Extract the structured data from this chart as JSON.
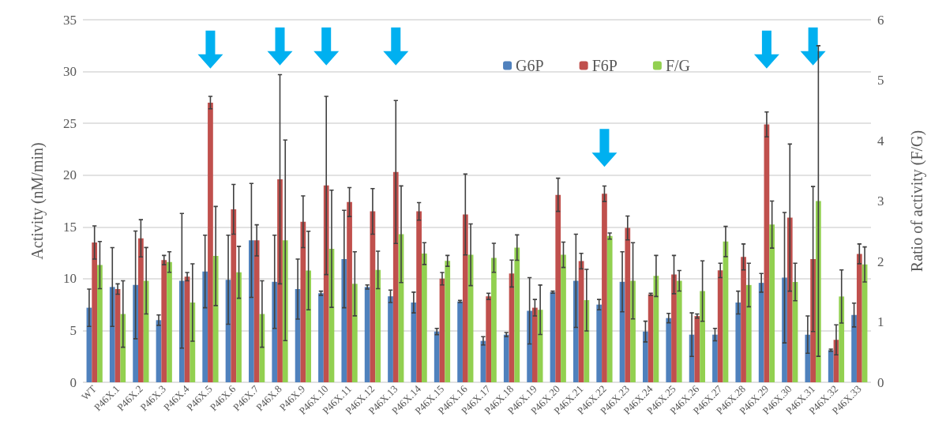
{
  "chart_data": {
    "type": "bar",
    "ylabel": "Activity (nM/min)",
    "y2label": "Ratio of activity (F/G)",
    "categories": [
      "WT",
      "P46X.1",
      "P46X.2",
      "P46X.3",
      "P46X.4",
      "P46X.5",
      "P46X.6",
      "P46X.7",
      "P46X.8",
      "P46X.9",
      "P46X.10",
      "P46X.11",
      "P46X.12",
      "P46X.13",
      "P46X.14",
      "P46X.15",
      "P46X.16",
      "P46X.17",
      "P46X.18",
      "P46X.19",
      "P46X.20",
      "P46X.21",
      "P46X.22",
      "P46X.23",
      "P46X.24",
      "P46X.25",
      "P46X.26",
      "P46X.27",
      "P46X.28",
      "P46X.29",
      "P46X.30",
      "P46X.31",
      "P46X.32",
      "P46X.33"
    ],
    "series": [
      {
        "name": "G6P",
        "color": "#4f81bd",
        "values": [
          7.2,
          9.2,
          9.4,
          6.0,
          9.8,
          10.7,
          9.9,
          13.7,
          9.7,
          9.0,
          8.6,
          11.9,
          9.2,
          8.3,
          7.7,
          4.9,
          7.8,
          4.0,
          4.6,
          6.9,
          8.7,
          9.8,
          7.5,
          9.7,
          4.9,
          6.2,
          4.6,
          4.6,
          7.7,
          9.6,
          10.1,
          4.6,
          3.1,
          6.5
        ],
        "errors": [
          1.8,
          3.8,
          5.2,
          0.5,
          6.5,
          3.5,
          4.3,
          5.5,
          4.5,
          2.9,
          0.2,
          4.7,
          0.2,
          0.6,
          1.0,
          0.3,
          0.1,
          0.4,
          0.2,
          3.2,
          0.1,
          4.5,
          0.5,
          2.9,
          1.0,
          0.45,
          2.1,
          0.6,
          1.1,
          0.9,
          6.3,
          1.8,
          0.1,
          1.15
        ]
      },
      {
        "name": "F6P",
        "color": "#c0504d",
        "values": [
          13.5,
          9.0,
          13.9,
          11.8,
          10.2,
          27.0,
          16.7,
          13.7,
          19.6,
          15.5,
          19.0,
          17.4,
          16.5,
          20.3,
          16.5,
          10.0,
          16.2,
          8.3,
          10.5,
          7.2,
          18.1,
          11.7,
          18.2,
          14.9,
          8.5,
          10.4,
          6.4,
          10.8,
          12.1,
          24.9,
          15.9,
          11.9,
          4.1,
          12.4
        ],
        "errors": [
          1.6,
          0.5,
          1.8,
          0.45,
          0.4,
          0.6,
          2.4,
          1.5,
          10.1,
          2.5,
          8.6,
          1.4,
          2.2,
          6.9,
          0.85,
          0.6,
          3.9,
          0.3,
          1.3,
          0.8,
          1.6,
          0.75,
          0.75,
          1.15,
          0.1,
          1.85,
          0.2,
          0.7,
          1.25,
          1.2,
          7.1,
          7.0,
          1.45,
          0.95
        ]
      },
      {
        "name": "F/G",
        "color": "#92d050",
        "axis": "y2",
        "values": [
          1.94,
          1.13,
          1.68,
          1.99,
          1.32,
          2.09,
          1.82,
          1.13,
          2.35,
          1.85,
          2.21,
          1.63,
          1.86,
          2.45,
          2.13,
          2.01,
          2.11,
          2.06,
          2.23,
          1.2,
          2.11,
          1.36,
          2.42,
          1.68,
          1.76,
          1.68,
          1.51,
          2.33,
          1.61,
          2.61,
          1.66,
          3.0,
          1.42,
          1.95
        ],
        "errors": [
          0.39,
          0.55,
          0.55,
          0.17,
          0.64,
          0.82,
          0.43,
          0.55,
          1.66,
          0.65,
          0.97,
          0.53,
          0.31,
          0.8,
          0.18,
          0.09,
          0.51,
          0.24,
          0.21,
          0.41,
          0.21,
          0.51,
          0.05,
          0.63,
          0.34,
          0.17,
          0.5,
          0.25,
          0.36,
          0.39,
          0.31,
          2.57,
          0.44,
          0.29
        ]
      }
    ],
    "ylim": [
      0,
      35
    ],
    "yticks": [
      0,
      5,
      10,
      15,
      20,
      25,
      30,
      35
    ],
    "y2lim": [
      0,
      6
    ],
    "y2ticks": [
      0,
      1,
      2,
      3,
      4,
      5,
      6
    ],
    "grid": "y",
    "legend": "top right"
  }
}
